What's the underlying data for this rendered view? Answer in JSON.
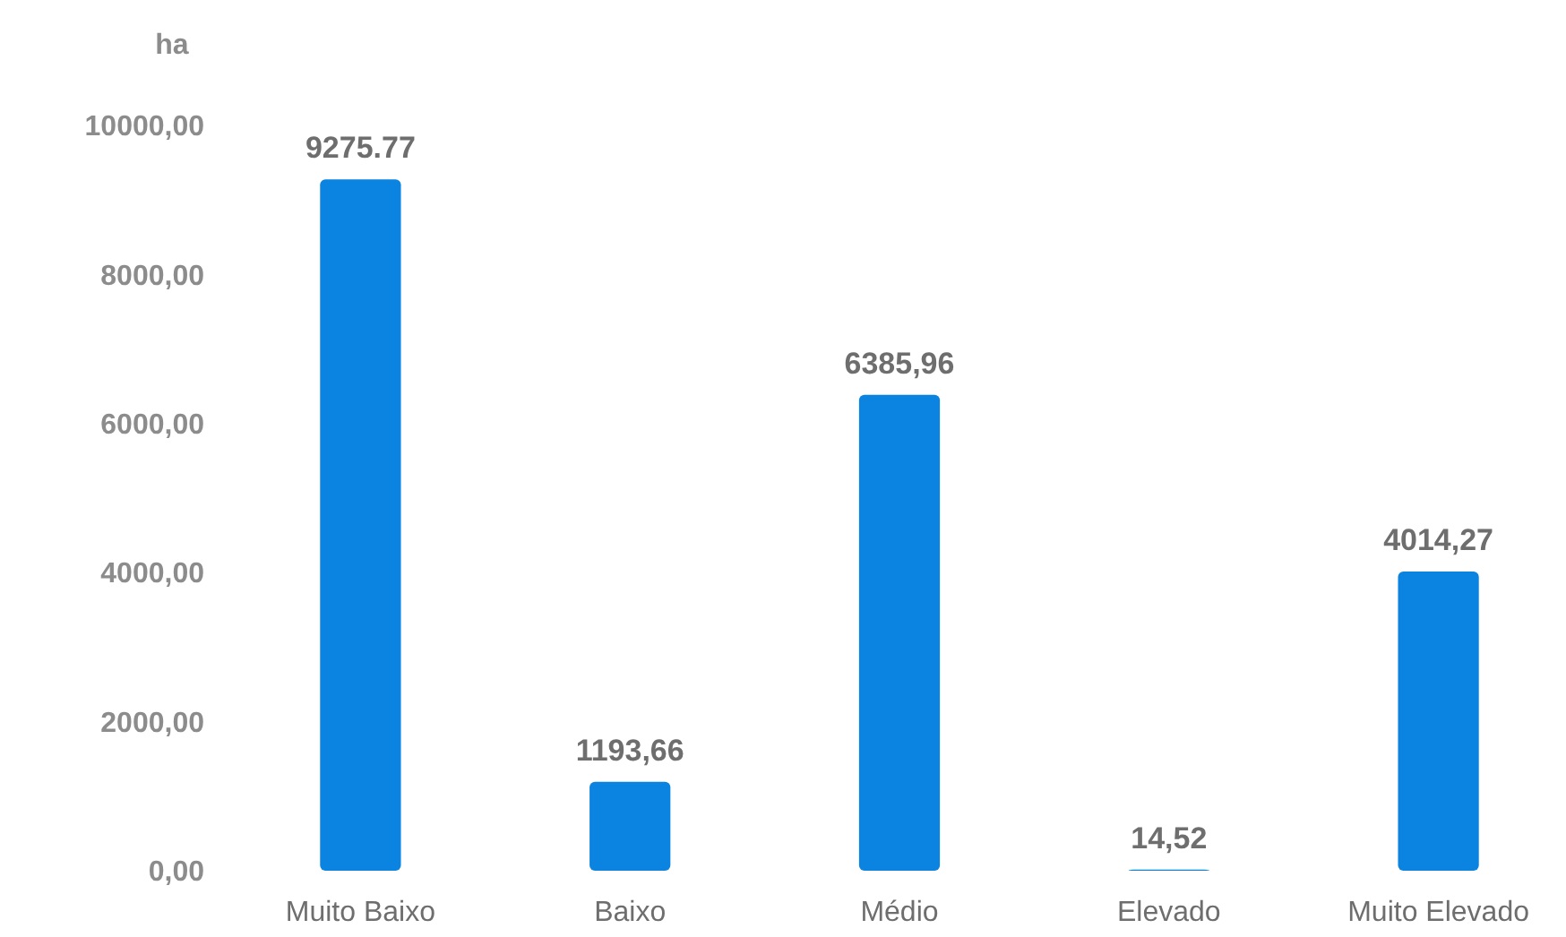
{
  "chart_data": {
    "type": "bar",
    "ylabel": "ha",
    "categories": [
      "Muito Baixo",
      "Baixo",
      "Médio",
      "Elevado",
      "Muito Elevado"
    ],
    "values": [
      9275.77,
      1193.66,
      6385.96,
      14.52,
      4014.27
    ],
    "value_labels": [
      "9275.77",
      "1193,66",
      "6385,96",
      "14,52",
      "4014,27"
    ],
    "color": "#0a84e0",
    "ylim": [
      0,
      10000
    ],
    "yticks": [
      {
        "value": 0,
        "label": "0,00"
      },
      {
        "value": 2000,
        "label": "2000,00"
      },
      {
        "value": 4000,
        "label": "4000,00"
      },
      {
        "value": 6000,
        "label": "6000,00"
      },
      {
        "value": 8000,
        "label": "8000,00"
      },
      {
        "value": 10000,
        "label": "10000,00"
      }
    ],
    "grid": false
  }
}
